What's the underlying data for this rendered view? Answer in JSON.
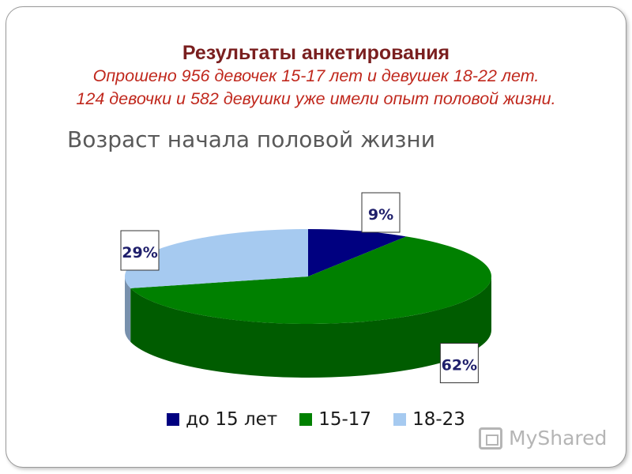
{
  "header": {
    "title": "Результаты анкетирования",
    "line1": "Опрошено 956 девочек 15-17 лет и  девушек 18-22 лет.",
    "line2": "124 девочки  и 582 девушки уже имели опыт половой жизни."
  },
  "watermark": "MyShared",
  "colors": {
    "accent_title": "#7a1f1f",
    "accent_subtitle": "#c0281d"
  },
  "chart_data": {
    "type": "pie",
    "title": "Возраст начала половой жизни",
    "three_d": true,
    "legend_position": "bottom",
    "series": [
      {
        "name": "до 15 лет",
        "value": 9,
        "label": "9%",
        "color": "#000080"
      },
      {
        "name": "15-17",
        "value": 62,
        "label": "62%",
        "color": "#008000"
      },
      {
        "name": "18-23",
        "value": 29,
        "label": "29%",
        "color": "#a6caf0"
      }
    ]
  }
}
